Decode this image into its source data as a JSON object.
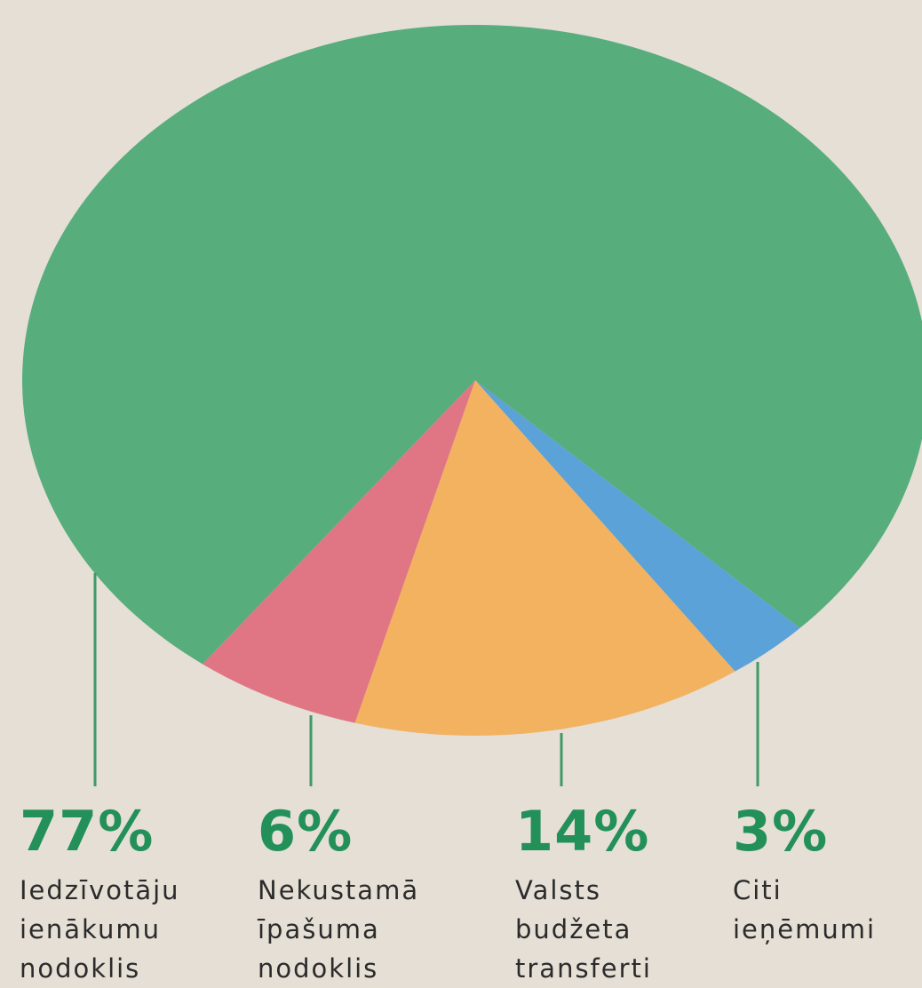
{
  "chart_data": {
    "type": "pie",
    "categories": [
      "Iedzīvotāju ienākumu nodoklis",
      "Nekustamā īpašuma nodoklis",
      "Valsts budžeta transferti",
      "Citi ieņēmumi"
    ],
    "values": [
      77,
      6,
      14,
      3
    ],
    "value_labels": [
      "77%",
      "6%",
      "14%",
      "3%"
    ],
    "colors": [
      "#58ad7d",
      "#e07684",
      "#f2b260",
      "#5aa2d8"
    ]
  }
}
